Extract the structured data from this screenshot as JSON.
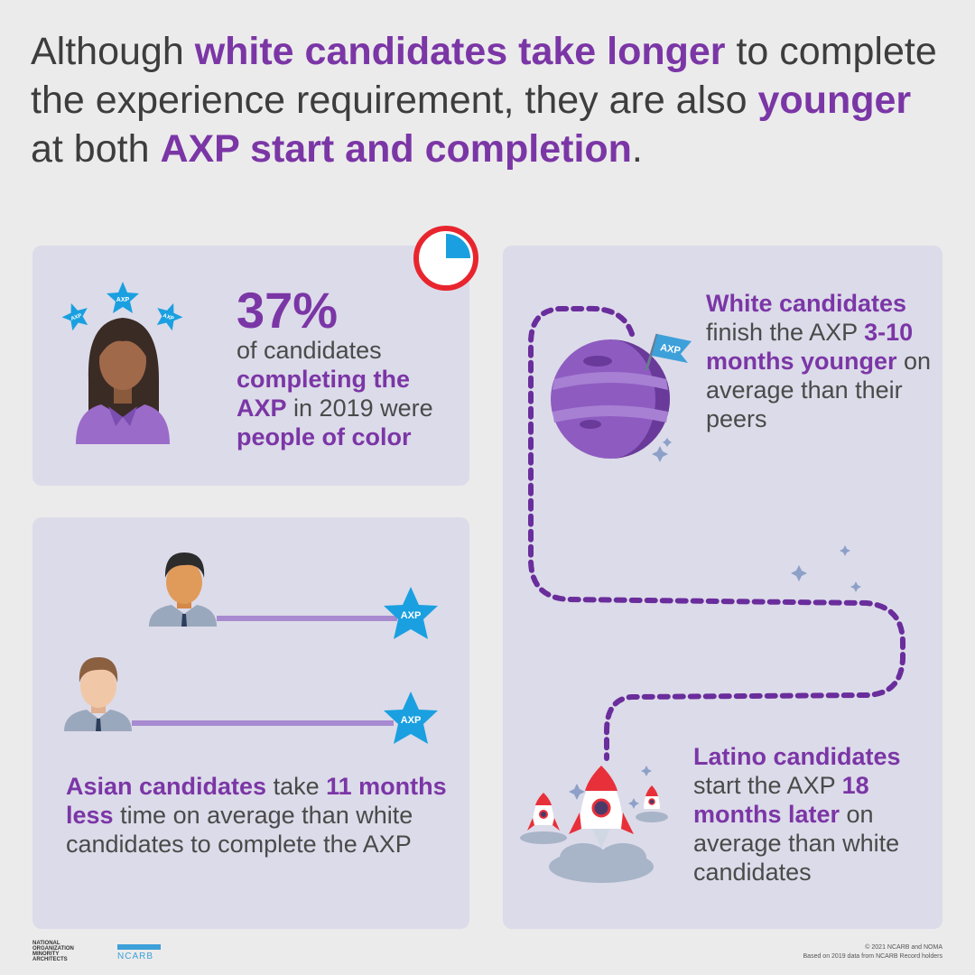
{
  "headline": {
    "part1": "Although ",
    "part2": "white candidates take longer",
    "part3": " to complete the experience requirement, they are also ",
    "part4": "younger",
    "part5": " at both ",
    "part6": "AXP start and completion",
    "part7": "."
  },
  "poc_card": {
    "percent": "37%",
    "line1": "of candidates ",
    "bold1": "completing the AXP",
    "line2": " in 2019 were ",
    "bold2": "people of color",
    "star_label": "AXP"
  },
  "asian_card": {
    "bold1": "Asian candidates",
    "text1": " take ",
    "bold2": "11 months less",
    "text2": " time on average than white candidates to complete the AXP",
    "star_label": "AXP"
  },
  "white_block": {
    "bold1": "White candidates",
    "text1": " finish the AXP ",
    "bold2": "3-10 months younger",
    "text2": " on average than their peers",
    "flag_label": "AXP"
  },
  "latino_block": {
    "bold1": "Latino candidates",
    "text1": " start the AXP ",
    "bold2": "18 months later",
    "text2": " on average than white candidates"
  },
  "footer": {
    "copyright": "© 2021 NCARB and NOMA",
    "source": "Based on 2019 data from NCARB Record holders",
    "ncarb": "NCARB",
    "noma_line1": "NATIONAL",
    "noma_line2": "ORGANIZATION",
    "noma_line3": "MINORITY",
    "noma_line4": "ARCHITECTS"
  },
  "colors": {
    "accent_purple": "#7b36a6",
    "card_bg": "#dcdbe9",
    "star_blue": "#1aa0e0",
    "clock_red": "#e8252e"
  },
  "progress": {
    "clock_fraction": 0.25
  }
}
